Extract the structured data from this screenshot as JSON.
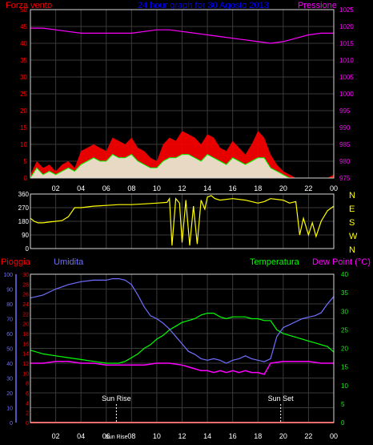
{
  "colors": {
    "background": "#000000",
    "frame": "#d8d8d8",
    "grid": "#3a3a3a",
    "wind": "#ff0000",
    "pressure": "#ff00ff",
    "title": "#0000ff",
    "direction": "#ffff00",
    "rain": "#ff0000",
    "humidity": "#6f6fff",
    "temperature": "#00ff00",
    "dewpoint": "#ff00ff",
    "sun": "#ffffff",
    "axis_text": "#ffffff"
  },
  "chart_data": [
    {
      "type": "area",
      "title": "24 hour graph for 30 Agosto 2013",
      "left_axis_title": "Forza vento",
      "right_axis_title": "Pressione",
      "left_ticks": [
        "0",
        "5",
        "10",
        "15",
        "20",
        "25",
        "30",
        "35",
        "40",
        "45",
        "50"
      ],
      "right_ticks": [
        "975",
        "980",
        "985",
        "990",
        "995",
        "1000",
        "1005",
        "1010",
        "1015",
        "1020",
        "1025"
      ],
      "x_ticks": [
        "02",
        "04",
        "06",
        "08",
        "10",
        "12",
        "14",
        "16",
        "18",
        "20",
        "22",
        "00"
      ],
      "ylim_left": [
        0,
        50
      ],
      "ylim_right": [
        975,
        1025
      ],
      "xlim_hours": [
        0,
        24
      ],
      "grid": true,
      "series": [
        {
          "key": "pressure",
          "axis": "right",
          "x": [
            0,
            1,
            2,
            3,
            4,
            5,
            6,
            7,
            8,
            9,
            10,
            11,
            12,
            13,
            14,
            15,
            16,
            17,
            18,
            19,
            20,
            21,
            22,
            23,
            24
          ],
          "y": [
            1019.5,
            1019.5,
            1019.0,
            1018.5,
            1018.0,
            1018.0,
            1018.0,
            1018.0,
            1018.0,
            1018.5,
            1019.0,
            1019.0,
            1018.5,
            1018.0,
            1017.5,
            1017.0,
            1016.5,
            1016.0,
            1015.5,
            1015.0,
            1015.5,
            1016.5,
            1017.5,
            1018.0,
            1018.0
          ]
        },
        {
          "key": "gust",
          "axis": "left",
          "x": [
            0,
            0.5,
            1,
            1.5,
            2,
            2.5,
            3,
            3.5,
            4,
            4.5,
            5,
            5.5,
            6,
            6.5,
            7,
            7.5,
            8,
            8.5,
            9,
            9.5,
            10,
            10.5,
            11,
            11.5,
            12,
            12.5,
            13,
            13.5,
            14,
            14.5,
            15,
            15.5,
            16,
            16.5,
            17,
            17.5,
            18,
            18.5,
            19,
            19.5,
            20,
            20.5,
            21,
            21.5,
            22,
            22.5,
            23,
            23.5,
            24
          ],
          "y": [
            1,
            5,
            3,
            4,
            2,
            4,
            5,
            3,
            8,
            9,
            10,
            9,
            8,
            12,
            11,
            10,
            12,
            9,
            8,
            6,
            5,
            10,
            12,
            11,
            14,
            13,
            12,
            10,
            13,
            12,
            9,
            8,
            11,
            9,
            7,
            10,
            14,
            12,
            7,
            4,
            2,
            1,
            0,
            0,
            0,
            0,
            0,
            0,
            1
          ]
        },
        {
          "key": "wind",
          "axis": "left",
          "x": [
            0,
            0.5,
            1,
            1.5,
            2,
            2.5,
            3,
            3.5,
            4,
            4.5,
            5,
            5.5,
            6,
            6.5,
            7,
            7.5,
            8,
            8.5,
            9,
            9.5,
            10,
            10.5,
            11,
            11.5,
            12,
            12.5,
            13,
            13.5,
            14,
            14.5,
            15,
            15.5,
            16,
            16.5,
            17,
            17.5,
            18,
            18.5,
            19,
            19.5,
            20,
            20.5,
            21,
            21.5,
            22,
            22.5,
            23,
            23.5,
            24
          ],
          "y": [
            0,
            3,
            1,
            2,
            1,
            2,
            3,
            2,
            4,
            5,
            6,
            5,
            5,
            7,
            6,
            6,
            7,
            5,
            4,
            3,
            3,
            5,
            6,
            6,
            7,
            7,
            6,
            5,
            7,
            6,
            5,
            4,
            6,
            5,
            4,
            5,
            6,
            6,
            3,
            2,
            1,
            0,
            0,
            0,
            0,
            0,
            0,
            0,
            0
          ]
        }
      ]
    },
    {
      "type": "line",
      "left_ticks": [
        "0",
        "90",
        "180",
        "270",
        "360"
      ],
      "right_ticks": [
        "N",
        "W",
        "S",
        "E",
        "N"
      ],
      "ylim": [
        0,
        360
      ],
      "xlim_hours": [
        0,
        24
      ],
      "grid": true,
      "series": [
        {
          "key": "direction",
          "x": [
            0,
            0.3,
            0.6,
            1,
            1.5,
            2,
            2.5,
            3,
            3.5,
            4,
            5,
            6,
            7,
            8,
            9,
            10,
            10.8,
            11,
            11.2,
            11.5,
            11.8,
            12,
            12.3,
            12.6,
            12.9,
            13.2,
            13.5,
            13.8,
            14,
            14.3,
            14.6,
            15,
            16,
            17,
            18,
            18.5,
            19,
            20,
            20.5,
            21,
            21.3,
            21.6,
            22,
            22.3,
            22.6,
            23,
            23.5,
            24
          ],
          "y": [
            200,
            180,
            170,
            170,
            175,
            180,
            185,
            210,
            270,
            270,
            280,
            285,
            290,
            290,
            295,
            300,
            305,
            330,
            20,
            330,
            300,
            40,
            320,
            20,
            280,
            30,
            320,
            260,
            340,
            350,
            330,
            320,
            330,
            320,
            300,
            310,
            330,
            320,
            300,
            310,
            90,
            200,
            90,
            170,
            80,
            180,
            250,
            280
          ]
        }
      ]
    },
    {
      "type": "line",
      "left_axis_title_1": "Pioggia",
      "left_axis_title_2": "Umidita",
      "right_axis_title_1": "Temperatura",
      "right_axis_title_2": "Dew Point (°C)",
      "rain_ticks": [
        "0",
        "2",
        "4",
        "6",
        "8",
        "10",
        "12",
        "14",
        "16",
        "18",
        "20",
        "22",
        "24",
        "26",
        "28",
        "30"
      ],
      "humidity_ticks": [
        "0",
        "10",
        "20",
        "30",
        "40",
        "50",
        "60",
        "70",
        "80",
        "90",
        "100"
      ],
      "temp_ticks": [
        "0",
        "5",
        "10",
        "15",
        "20",
        "25",
        "30",
        "35",
        "40"
      ],
      "x_ticks": [
        "02",
        "04",
        "06",
        "Sun Rise",
        "08",
        "10",
        "12",
        "14",
        "16",
        "18",
        "20",
        "22",
        "00"
      ],
      "ylim_rain": [
        0,
        30
      ],
      "ylim_humidity": [
        0,
        100
      ],
      "ylim_temp": [
        0,
        40
      ],
      "xlim_hours": [
        0,
        24
      ],
      "grid": true,
      "annotations": [
        {
          "label": "Sun Rise",
          "hour": 6.8
        },
        {
          "label": "Sun Set",
          "hour": 19.8
        }
      ],
      "series": [
        {
          "key": "rain",
          "axis": "rain",
          "x": [
            0,
            24
          ],
          "y": [
            0,
            0
          ]
        },
        {
          "key": "humidity",
          "axis": "humidity",
          "x": [
            0,
            0.5,
            1,
            2,
            3,
            4,
            5,
            6,
            6.5,
            7,
            7.5,
            8,
            8.5,
            9,
            9.5,
            10,
            10.5,
            11,
            11.5,
            12,
            12.5,
            13,
            13.5,
            14,
            14.5,
            15,
            15.5,
            16,
            16.5,
            17,
            17.5,
            18,
            18.5,
            19,
            19.5,
            20,
            20.5,
            21,
            21.5,
            22,
            22.5,
            23,
            23.5,
            24
          ],
          "y": [
            84,
            85,
            86,
            90,
            93,
            95,
            96,
            96,
            97,
            97,
            96,
            93,
            86,
            78,
            72,
            70,
            67,
            63,
            58,
            53,
            48,
            46,
            43,
            42,
            43,
            42,
            40,
            42,
            43,
            45,
            43,
            42,
            41,
            43,
            58,
            64,
            66,
            68,
            70,
            71,
            72,
            74,
            80,
            85
          ]
        },
        {
          "key": "temperature",
          "axis": "temp",
          "x": [
            0,
            0.5,
            1,
            2,
            3,
            4,
            5,
            6,
            6.5,
            7,
            7.5,
            8,
            8.5,
            9,
            9.5,
            10,
            10.5,
            11,
            11.5,
            12,
            12.5,
            13,
            13.5,
            14,
            14.5,
            15,
            15.5,
            16,
            16.5,
            17,
            17.5,
            18,
            18.5,
            19,
            19.5,
            20,
            20.5,
            21,
            21.5,
            22,
            22.5,
            23,
            23.5,
            24
          ],
          "y": [
            19.5,
            19,
            18.5,
            18,
            17.5,
            17,
            16.5,
            16,
            16,
            16,
            16.5,
            17.5,
            18.5,
            20,
            21,
            22.5,
            23.5,
            25,
            26,
            27,
            27.5,
            28,
            29,
            29.5,
            29.5,
            28.5,
            28,
            28.5,
            28.5,
            28.5,
            28,
            28,
            27.5,
            27.5,
            25,
            24,
            23.5,
            23,
            22.5,
            22,
            21.5,
            21,
            20.5,
            19
          ]
        },
        {
          "key": "dewpoint",
          "axis": "temp",
          "x": [
            0,
            1,
            2,
            3,
            4,
            5,
            6,
            7,
            8,
            9,
            10,
            11,
            12,
            12.5,
            13,
            13.5,
            14,
            14.5,
            15,
            15.5,
            16,
            16.5,
            17,
            17.5,
            18,
            18.5,
            19,
            20,
            21,
            22,
            23,
            24
          ],
          "y": [
            16,
            16,
            16.5,
            16.5,
            16,
            16,
            15.5,
            15.5,
            15.5,
            15.5,
            16,
            16,
            15.5,
            15,
            14.5,
            14,
            14,
            13.5,
            14,
            13.5,
            14,
            13.5,
            14,
            13.5,
            13.5,
            13,
            16,
            16.5,
            16.5,
            16.5,
            16,
            16
          ]
        }
      ]
    }
  ]
}
